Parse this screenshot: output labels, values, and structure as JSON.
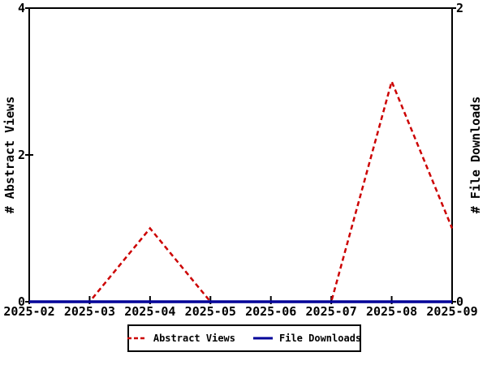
{
  "chart_data": {
    "type": "line",
    "title": "",
    "x": [
      "2025-02",
      "2025-03",
      "2025-04",
      "2025-05",
      "2025-06",
      "2025-07",
      "2025-08",
      "2025-09"
    ],
    "series": [
      {
        "name": "Abstract Views",
        "axis": "left",
        "color": "#cc0000",
        "line_style": "dashed",
        "values": [
          0,
          0,
          1,
          0,
          0,
          0,
          3,
          1
        ]
      },
      {
        "name": "File Downloads",
        "axis": "right",
        "color": "#000099",
        "line_style": "solid",
        "values": [
          0,
          0,
          0,
          0,
          0,
          0,
          0,
          0
        ]
      }
    ],
    "axes": {
      "left": {
        "label": "# Abstract Views",
        "range": [
          0,
          4
        ],
        "ticks": [
          0,
          2,
          4
        ]
      },
      "right": {
        "label": "# File Downloads",
        "range": [
          0,
          2
        ],
        "ticks": [
          0,
          2
        ]
      },
      "bottom": {
        "ticks": [
          "2025-02",
          "2025-03",
          "2025-04",
          "2025-05",
          "2025-06",
          "2025-07",
          "2025-08",
          "2025-09"
        ]
      }
    },
    "grid": false,
    "legend": {
      "position": "bottom-center",
      "entries": [
        "Abstract Views",
        "File Downloads"
      ]
    }
  }
}
